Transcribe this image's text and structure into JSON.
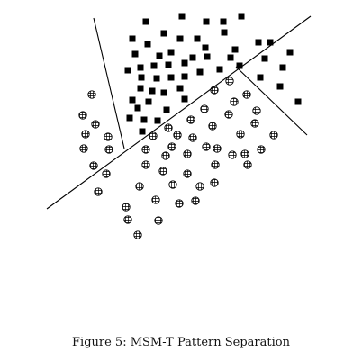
{
  "figure": {
    "caption": "Figure 5: MSM-T Pattern Separation"
  },
  "legend_free_classes": [
    {
      "class": "square",
      "marker": "filled-square"
    },
    {
      "class": "circle",
      "marker": "hatched-circle"
    }
  ],
  "colors": {
    "ink": "#000000",
    "background": "#ffffff"
  },
  "separating_lines": 3
}
